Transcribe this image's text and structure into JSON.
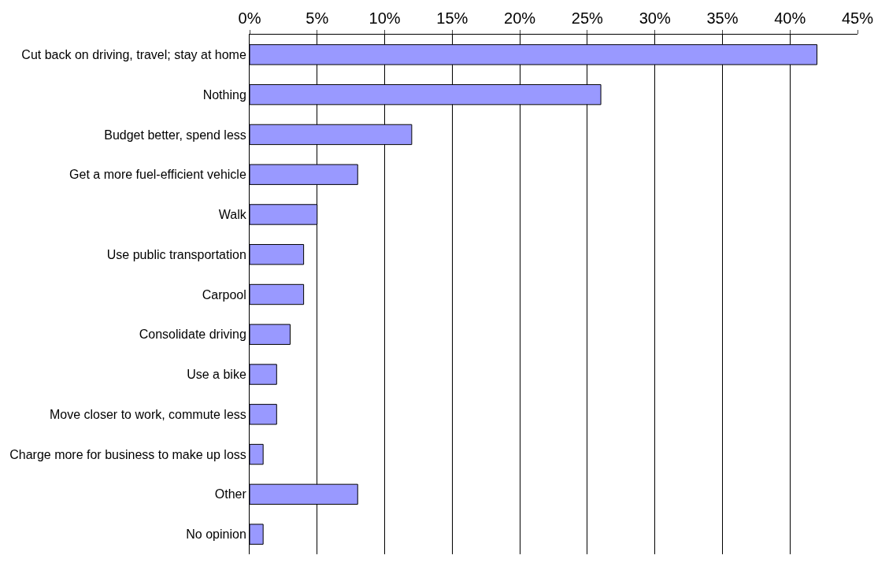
{
  "chart_data": {
    "type": "bar",
    "orientation": "horizontal",
    "categories": [
      "Cut back on driving, travel; stay at home",
      "Nothing",
      "Budget better, spend less",
      "Get a more fuel-efficient vehicle",
      "Walk",
      "Use public transportation",
      "Carpool",
      "Consolidate driving",
      "Use a bike",
      "Move closer to work, commute less",
      "Charge more for business to make up loss",
      "Other",
      "No opinion"
    ],
    "values": [
      42,
      26,
      12,
      8,
      5,
      4,
      4,
      3,
      2,
      2,
      1,
      8,
      1
    ],
    "color": "#9999ff",
    "xlim": [
      0,
      45
    ],
    "xticks": [
      {
        "value": 0,
        "label": "0%"
      },
      {
        "value": 5,
        "label": "5%"
      },
      {
        "value": 10,
        "label": "10%"
      },
      {
        "value": 15,
        "label": "15%"
      },
      {
        "value": 20,
        "label": "20%"
      },
      {
        "value": 25,
        "label": "25%"
      },
      {
        "value": 30,
        "label": "30%"
      },
      {
        "value": 35,
        "label": "35%"
      },
      {
        "value": 40,
        "label": "40%"
      },
      {
        "value": 45,
        "label": "45%"
      }
    ],
    "grid": "x",
    "legend": false
  }
}
